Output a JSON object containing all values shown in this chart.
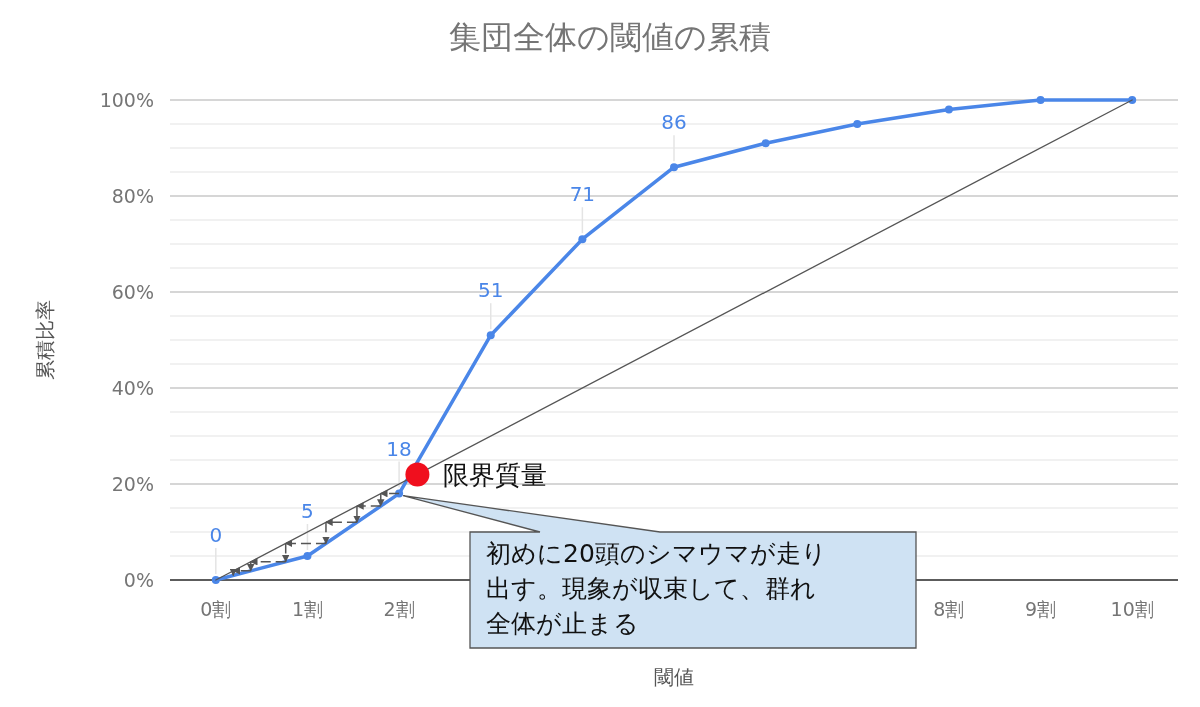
{
  "chart_data": {
    "type": "line",
    "title": "集団全体の閾値の累積",
    "xlabel": "閾値",
    "ylabel": "累積比率",
    "xlim": [
      -0.5,
      10.5
    ],
    "xticks": [
      {
        "value": 0,
        "label": "0割"
      },
      {
        "value": 1,
        "label": "1割"
      },
      {
        "value": 2,
        "label": "2割"
      },
      {
        "value": 8,
        "label": "8割"
      },
      {
        "value": 9,
        "label": "9割"
      },
      {
        "value": 10,
        "label": "10割"
      }
    ],
    "ylim": [
      0,
      100
    ],
    "yticks": [
      {
        "value": 0,
        "label": "0%"
      },
      {
        "value": 5,
        "label": null
      },
      {
        "value": 10,
        "label": null
      },
      {
        "value": 15,
        "label": null
      },
      {
        "value": 20,
        "label": "20%"
      },
      {
        "value": 25,
        "label": null
      },
      {
        "value": 30,
        "label": null
      },
      {
        "value": 35,
        "label": null
      },
      {
        "value": 40,
        "label": "40%"
      },
      {
        "value": 45,
        "label": null
      },
      {
        "value": 50,
        "label": null
      },
      {
        "value": 55,
        "label": null
      },
      {
        "value": 60,
        "label": "60%"
      },
      {
        "value": 65,
        "label": null
      },
      {
        "value": 70,
        "label": null
      },
      {
        "value": 75,
        "label": null
      },
      {
        "value": 80,
        "label": "80%"
      },
      {
        "value": 85,
        "label": null
      },
      {
        "value": 90,
        "label": null
      },
      {
        "value": 95,
        "label": null
      },
      {
        "value": 100,
        "label": "100%"
      }
    ],
    "grid": "y",
    "legend": false,
    "series": [
      {
        "color": "#4a86e8",
        "marker": "circle",
        "x": [
          0,
          1,
          2,
          3,
          4,
          5,
          6,
          7,
          8,
          9,
          10
        ],
        "values": [
          0,
          5,
          18,
          51,
          71,
          86,
          91,
          95,
          98,
          100,
          100
        ],
        "value_labels": [
          "0",
          "5",
          "18",
          "51",
          "71",
          "86",
          null,
          null,
          null,
          null,
          null
        ]
      },
      {
        "color": "#555555",
        "marker": "none",
        "x": [
          0,
          10
        ],
        "values": [
          0,
          100
        ]
      },
      {
        "type": "scatter",
        "name": "限界質量",
        "color": "#f00f1e",
        "x": [
          2.2
        ],
        "values": [
          22
        ]
      }
    ],
    "annotations": [
      "初めに20頭のシマウマが走り出す。現象が収束して、群れ全体が止まる"
    ]
  }
}
